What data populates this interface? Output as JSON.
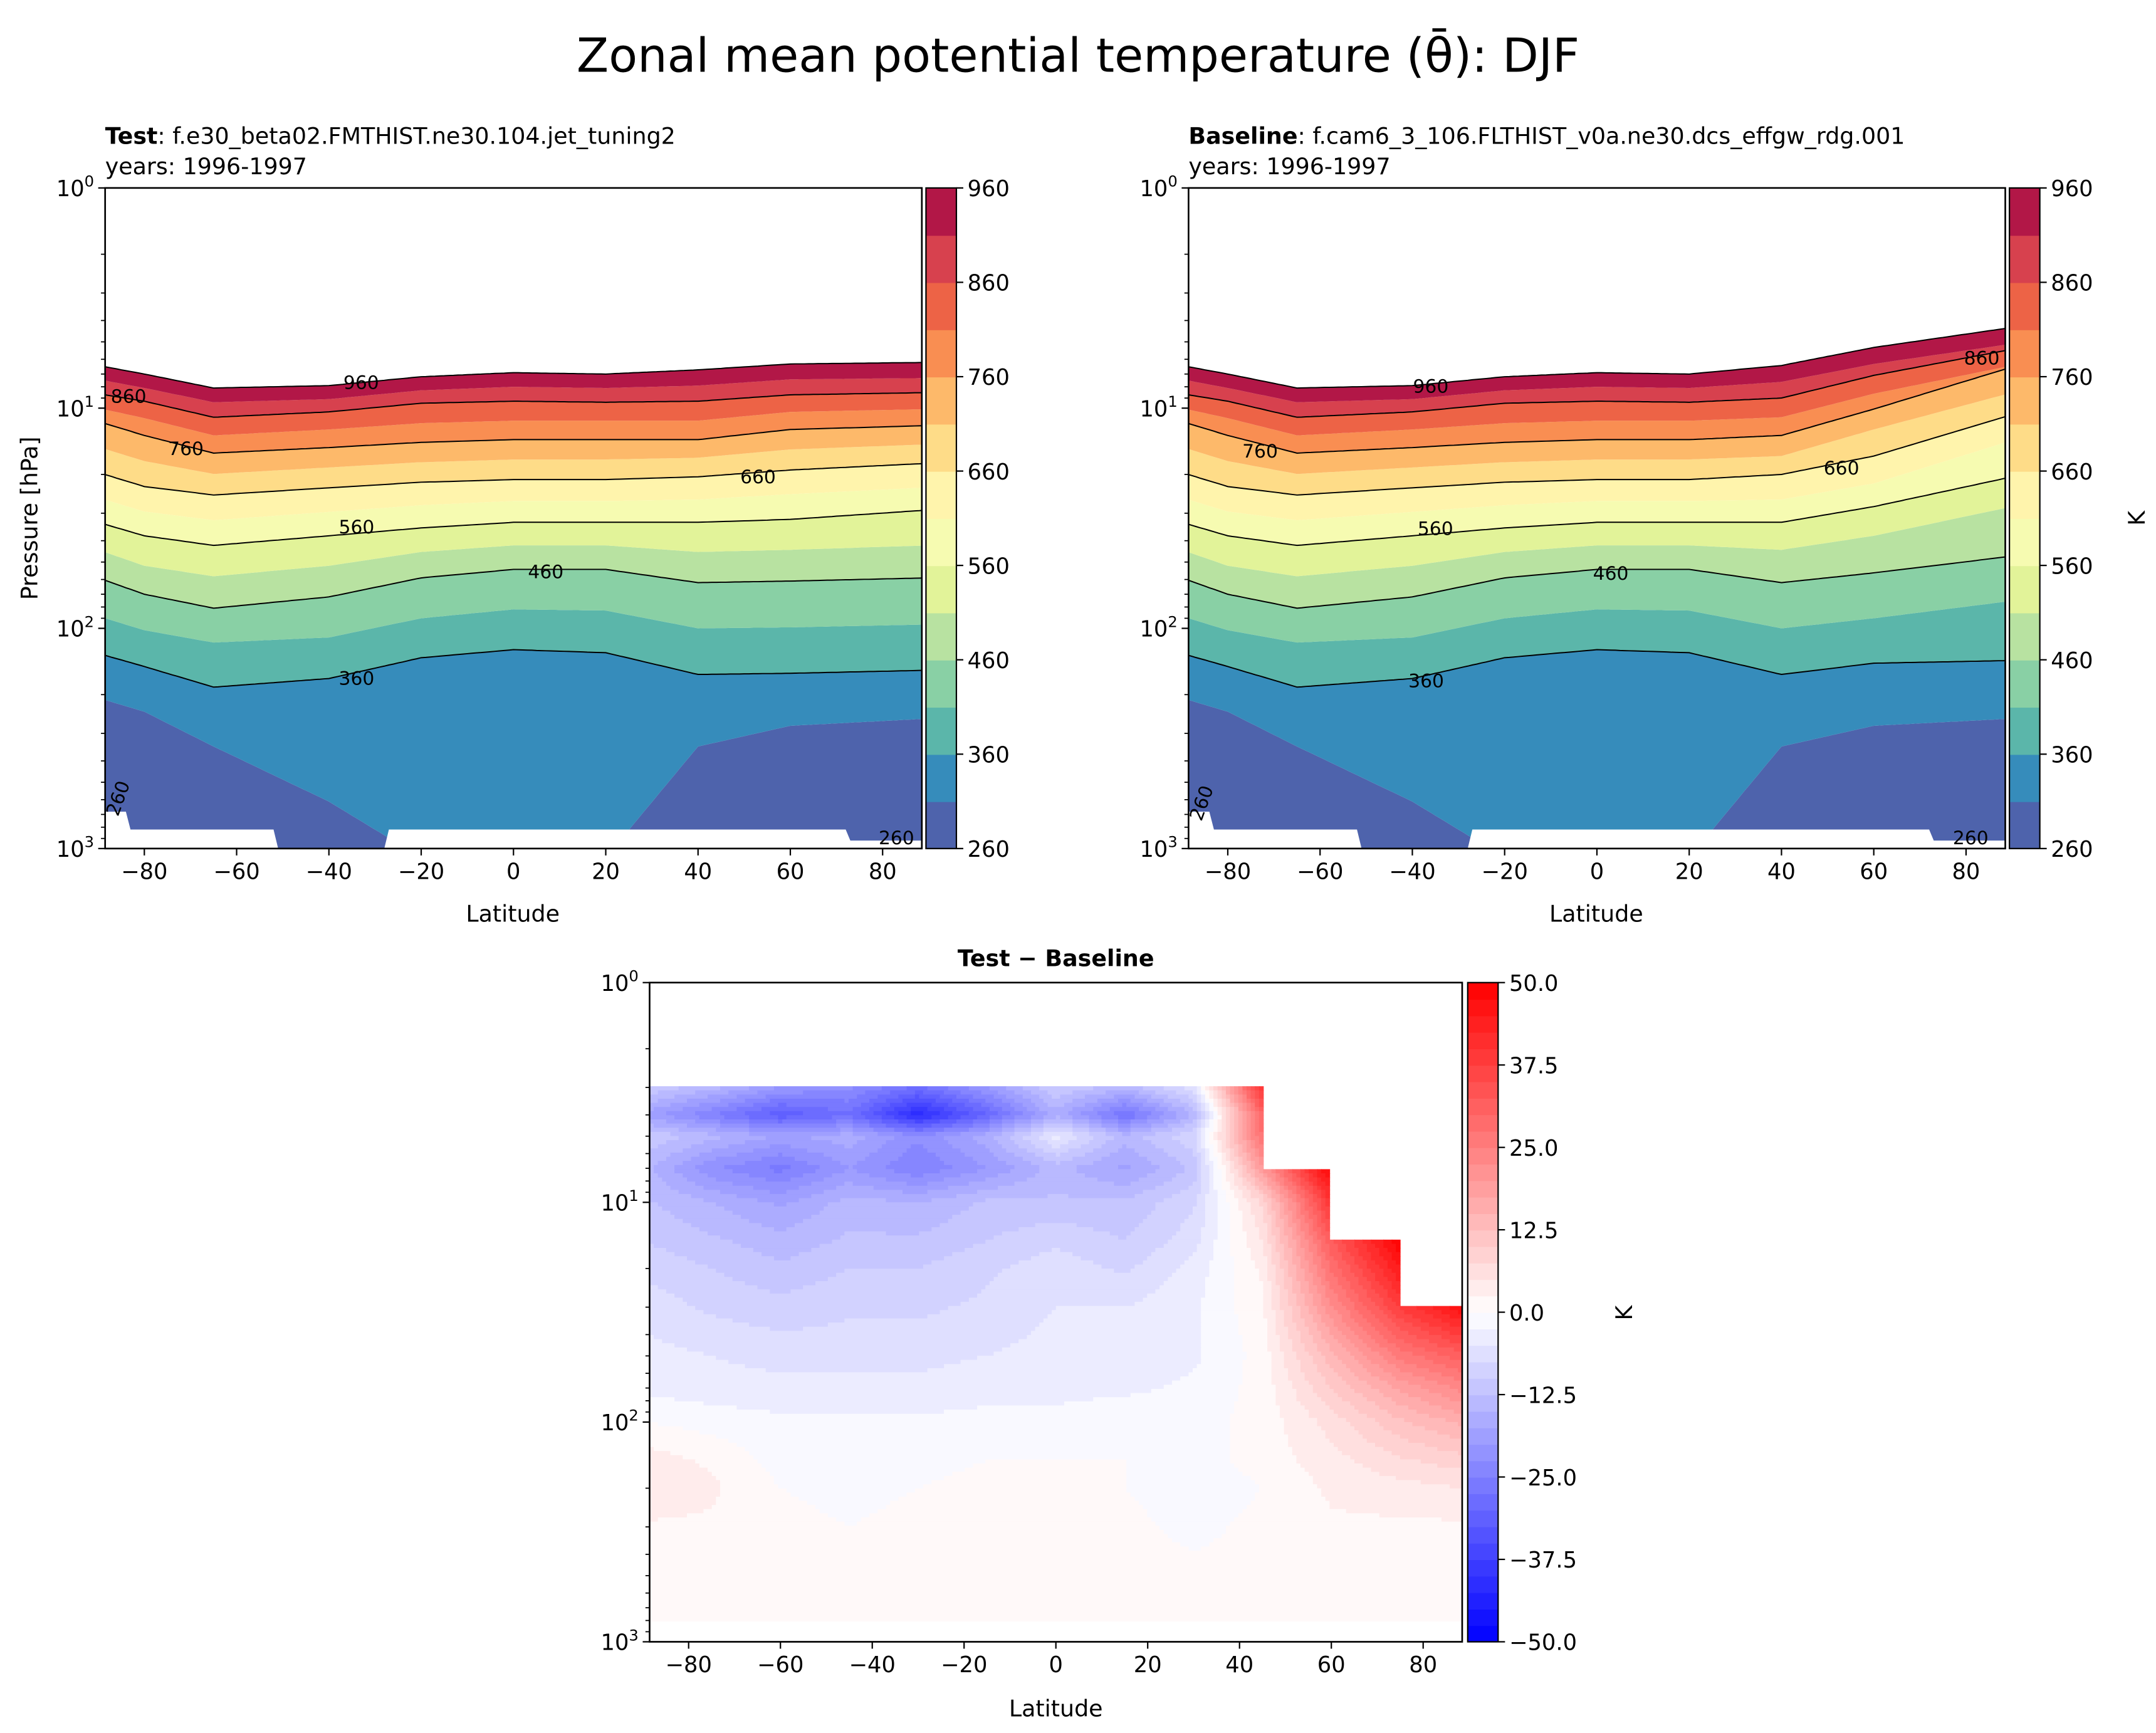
{
  "suptitle": "Zonal mean potential temperature (θ̄): DJF",
  "panels": {
    "test": {
      "label": "Test",
      "case": ": f.e30_beta02.FMTHIST.ne30.104.jet_tuning2",
      "years": "years: 1996-1997",
      "ylabel": "Pressure [hPa]",
      "xlabel": "Latitude",
      "cbar_label": ""
    },
    "baseline": {
      "label": "Baseline",
      "case": ": f.cam6_3_106.FLTHIST_v0a.ne30.dcs_effgw_rdg.001",
      "years": "years: 1996-1997",
      "ylabel": "",
      "xlabel": "Latitude",
      "cbar_label": "K"
    },
    "diff": {
      "title": "Test − Baseline",
      "xlabel": "Latitude",
      "cbar_label": "K"
    }
  },
  "chart_data": [
    {
      "type": "contourf",
      "panel": "test",
      "colormap": "Spectral_r",
      "xlim": [
        -88.5,
        88.5
      ],
      "ylim_hPa": [
        1000,
        1
      ],
      "yscale": "log",
      "xticks": [
        -80,
        -60,
        -40,
        -20,
        0,
        20,
        40,
        60,
        80
      ],
      "yticks": [
        "10^0",
        "10^1",
        "10^2",
        "10^3"
      ],
      "cbar_ticks": [
        260,
        360,
        460,
        560,
        660,
        760,
        860,
        960
      ],
      "levels_K": [
        260,
        310,
        360,
        410,
        460,
        510,
        560,
        610,
        660,
        710,
        760,
        810,
        860,
        910,
        960
      ],
      "isentrope_lats": [
        -90,
        -80,
        -65,
        -40,
        -20,
        0,
        20,
        40,
        60,
        90
      ],
      "isentrope_pressure_hPa": {
        "310": [
          207,
          239,
          344,
          612,
          1100,
          1100,
          1100,
          344,
          277,
          257
        ],
        "360": [
          130,
          149,
          185,
          169,
          136,
          125,
          129,
          162,
          160,
          155
        ],
        "410": [
          88,
          102,
          116,
          110,
          90,
          82,
          83,
          100,
          99,
          96
        ],
        "460": [
          59,
          70,
          81,
          72,
          59,
          54,
          54,
          62,
          61,
          59
        ],
        "510": [
          44,
          52,
          58,
          52,
          45,
          42,
          42,
          45,
          44,
          42
        ],
        "560": [
          33,
          38,
          42,
          38,
          35,
          33,
          33,
          33,
          32,
          29
        ],
        "610": [
          25.5,
          29.5,
          32.3,
          29.6,
          27.6,
          26.4,
          26.4,
          26,
          24.6,
          22.9
        ],
        "660": [
          19.6,
          22.7,
          24.8,
          23,
          21.7,
          21.1,
          21.1,
          20.5,
          19.1,
          17.8
        ],
        "710": [
          15,
          17.4,
          19.9,
          18.6,
          17.6,
          17.1,
          17.1,
          16.8,
          15.4,
          14.6
        ],
        "760": [
          11.5,
          13.3,
          16,
          15.1,
          14.3,
          13.9,
          13.9,
          13.9,
          12.5,
          12
        ],
        "810": [
          10,
          11.1,
          13.3,
          12.5,
          11.7,
          11.4,
          11.4,
          11.4,
          10.4,
          10.1
        ],
        "860": [
          8.6,
          9.3,
          11,
          10.4,
          9.5,
          9.3,
          9.4,
          9.3,
          8.7,
          8.5
        ],
        "910": [
          7.4,
          8.1,
          9.4,
          9.1,
          8.3,
          8,
          8.1,
          7.9,
          7.4,
          7.3
        ],
        "960": [
          6.4,
          7,
          8.1,
          7.9,
          7.2,
          6.9,
          7,
          6.7,
          6.3,
          6.2
        ]
      },
      "surface_mask": {
        "lats": [
          -88.5,
          -84,
          -83,
          -52,
          -51,
          -28,
          -27,
          72,
          73,
          88.5
        ],
        "pressure_hPa": [
          680,
          680,
          820,
          820,
          1000,
          1000,
          820,
          820,
          920,
          920
        ]
      },
      "contour_labels": [
        {
          "text": "960",
          "lat": -33,
          "p": 7.6
        },
        {
          "text": "860",
          "lat": -93,
          "p": 8.8
        },
        {
          "text": "760",
          "lat": -71,
          "p": 15.2
        },
        {
          "text": "660",
          "lat": 53,
          "p": 20.4
        },
        {
          "text": "560",
          "lat": -34,
          "p": 34.5
        },
        {
          "text": "460",
          "lat": 7,
          "p": 55
        },
        {
          "text": "360",
          "lat": -34,
          "p": 168
        },
        {
          "text": "260",
          "lat": -87,
          "p": 590
        },
        {
          "text": "260",
          "lat": 83,
          "p": 900
        }
      ]
    },
    {
      "type": "contourf",
      "panel": "baseline",
      "colormap": "Spectral_r",
      "xlim": [
        -88.5,
        88.5
      ],
      "ylim_hPa": [
        1000,
        1
      ],
      "yscale": "log",
      "xticks": [
        -80,
        -60,
        -40,
        -20,
        0,
        20,
        40,
        60,
        80
      ],
      "yticks": [
        "10^0",
        "10^1",
        "10^2",
        "10^3"
      ],
      "cbar_ticks": [
        260,
        360,
        460,
        560,
        660,
        760,
        860,
        960
      ],
      "levels_K": [
        260,
        310,
        360,
        410,
        460,
        510,
        560,
        610,
        660,
        710,
        760,
        810,
        860,
        910,
        960
      ],
      "isentrope_lats": [
        -90,
        -80,
        -65,
        -40,
        -20,
        0,
        20,
        40,
        60,
        90
      ],
      "isentrope_pressure_hPa": {
        "310": [
          207,
          239,
          344,
          612,
          1100,
          1100,
          1100,
          344,
          277,
          257
        ],
        "360": [
          130,
          149,
          185,
          169,
          136,
          125,
          129,
          162,
          144,
          140
        ],
        "410": [
          88,
          102,
          116,
          110,
          90,
          82,
          83,
          100,
          90,
          75
        ],
        "460": [
          59,
          70,
          81,
          72,
          59,
          54,
          54,
          62,
          56,
          47
        ],
        "510": [
          44,
          52,
          58,
          52,
          45,
          42,
          42,
          44,
          38,
          28
        ],
        "560": [
          33,
          38,
          42,
          38,
          35,
          33,
          33,
          33,
          28,
          20.5
        ],
        "610": [
          25.5,
          29.5,
          32.3,
          29.6,
          27.6,
          26.4,
          26.4,
          26,
          22,
          14
        ],
        "660": [
          19.6,
          22.7,
          24.8,
          23,
          21.7,
          21.1,
          21.1,
          20,
          16.5,
          10.7
        ],
        "710": [
          15,
          17.4,
          19.9,
          18.6,
          17.6,
          17.1,
          17.1,
          16.5,
          12.5,
          8.5
        ],
        "760": [
          11.5,
          13.3,
          16,
          15.1,
          14.3,
          13.9,
          13.9,
          13.3,
          10.1,
          6.5
        ],
        "810": [
          10,
          11.1,
          13.3,
          12.5,
          11.7,
          11.4,
          11.4,
          11,
          8.6,
          6.4
        ],
        "860": [
          8.6,
          9.3,
          11,
          10.4,
          9.5,
          9.3,
          9.4,
          9,
          7.1,
          5.4
        ],
        "910": [
          7.4,
          8.1,
          9.4,
          9.1,
          8.3,
          8,
          8.1,
          7.6,
          6.3,
          5.1
        ],
        "960": [
          6.4,
          7,
          8.1,
          7.9,
          7.2,
          6.9,
          7,
          6.4,
          5.3,
          4.3
        ]
      },
      "surface_mask": {
        "lats": [
          -88.5,
          -84,
          -83,
          -52,
          -51,
          -28,
          -27,
          72,
          73,
          88.5
        ],
        "pressure_hPa": [
          680,
          680,
          820,
          820,
          1000,
          1000,
          820,
          820,
          920,
          920
        ]
      },
      "contour_labels": [
        {
          "text": "960",
          "lat": -36,
          "p": 7.9
        },
        {
          "text": "860",
          "lat": 86,
          "p": 5.9
        },
        {
          "text": "760",
          "lat": -73,
          "p": 15.6
        },
        {
          "text": "660",
          "lat": 53,
          "p": 18.6
        },
        {
          "text": "560",
          "lat": -35,
          "p": 35
        },
        {
          "text": "460",
          "lat": 3,
          "p": 56
        },
        {
          "text": "360",
          "lat": -37,
          "p": 172
        },
        {
          "text": "260",
          "lat": -87,
          "p": 620
        },
        {
          "text": "260",
          "lat": 81,
          "p": 900
        }
      ]
    },
    {
      "type": "heatmap",
      "panel": "diff",
      "colormap": "bwr",
      "vmin": -50,
      "vmax": 50,
      "level_step": 2.5,
      "xlim": [
        -88.5,
        88.5
      ],
      "ylim_hPa": [
        1000,
        1
      ],
      "yscale": "log",
      "xticks": [
        -80,
        -60,
        -40,
        -20,
        0,
        20,
        40,
        60,
        80
      ],
      "yticks": [
        "10^0",
        "10^1",
        "10^2",
        "10^3"
      ],
      "cbar_ticks": [
        "−50.0",
        "−37.5",
        "−25.0",
        "−12.5",
        "0.0",
        "12.5",
        "25.0",
        "37.5",
        "50.0"
      ],
      "lats": [
        -90,
        -75,
        -60,
        -45,
        -30,
        -15,
        0,
        15,
        30,
        45,
        60,
        75,
        90
      ],
      "pressure_hPa": [
        3,
        4,
        5,
        7,
        10,
        15,
        20,
        30,
        50,
        70,
        100,
        150,
        200,
        300,
        500,
        700,
        800
      ],
      "values_K": [
        [
          -10,
          -14,
          -20,
          -22,
          -28,
          -20,
          -10,
          -14,
          -6,
          40,
          null,
          null,
          null
        ],
        [
          -18,
          -25,
          -32,
          -28,
          -42,
          -30,
          -16,
          -28,
          -15,
          30,
          null,
          null,
          null
        ],
        [
          -10,
          -14,
          -18,
          -16,
          -22,
          -16,
          -4,
          -14,
          -8,
          28,
          null,
          null,
          null
        ],
        [
          -14,
          -22,
          -26,
          -20,
          -25,
          -20,
          -14,
          -18,
          -12,
          20,
          50,
          null,
          null
        ],
        [
          -12,
          -15,
          -18,
          -14,
          -15,
          -12,
          -12,
          -12,
          -8,
          8,
          40,
          null,
          null
        ],
        [
          -10,
          -12,
          -14,
          -12,
          -12,
          -10,
          -8,
          -10,
          -6,
          5,
          32,
          50,
          null
        ],
        [
          -8,
          -10,
          -12,
          -10,
          -10,
          -8,
          -6,
          -8,
          -4,
          3,
          28,
          45,
          null
        ],
        [
          -6,
          -8,
          -9,
          -8,
          -8,
          -7,
          -5,
          -5,
          -3,
          2,
          22,
          38,
          48
        ],
        [
          -4,
          -5,
          -6,
          -6,
          -6,
          -5,
          -4,
          -4,
          -3,
          1,
          14,
          26,
          32
        ],
        [
          -3,
          -4,
          -4,
          -4,
          -4,
          -3,
          -3,
          -3,
          -2,
          1,
          10,
          18,
          24
        ],
        [
          0,
          -1,
          -2,
          -2,
          -2,
          -2,
          -2,
          -1,
          -1,
          1,
          6,
          12,
          16
        ],
        [
          4,
          2,
          -1,
          -1,
          -1,
          0,
          0,
          0,
          -1,
          1,
          4,
          7,
          9
        ],
        [
          5,
          3,
          0,
          -1,
          0,
          1,
          1,
          0,
          -2,
          0,
          3,
          4,
          5
        ],
        [
          2,
          2,
          1,
          0,
          1,
          2,
          2,
          1,
          -1,
          1,
          2,
          2,
          2
        ],
        [
          1,
          1,
          1,
          1,
          1,
          1,
          1,
          1,
          1,
          1,
          1,
          1,
          1
        ],
        [
          1,
          1,
          1,
          0,
          1,
          1,
          1,
          1,
          1,
          1,
          1,
          1,
          0
        ],
        [
          1,
          1,
          1,
          0,
          1,
          1,
          1,
          1,
          1,
          1,
          1,
          1,
          0
        ]
      ]
    }
  ]
}
